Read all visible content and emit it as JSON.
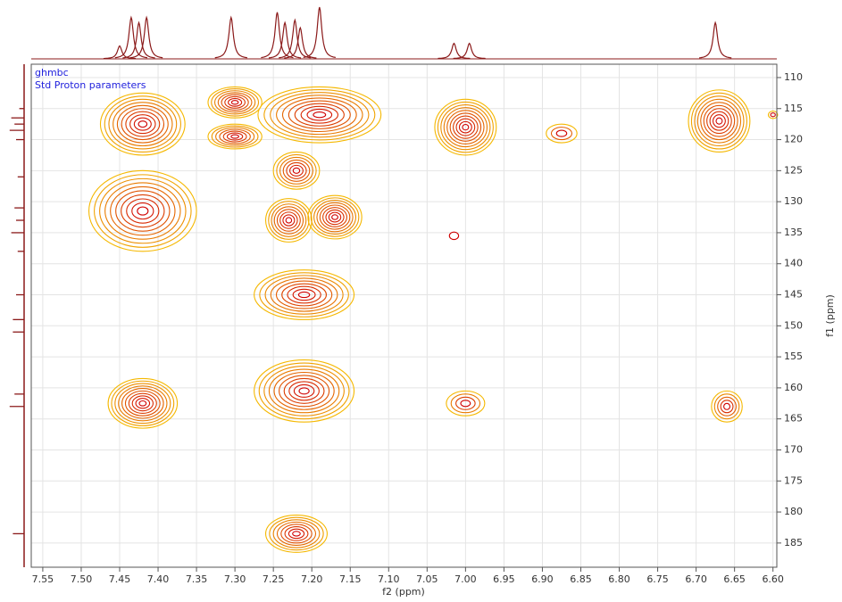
{
  "chart_data": {
    "type": "contour",
    "title": "ghmbc",
    "subtitle": "Std Proton parameters",
    "x_label": "f2 (ppm)",
    "y_label": "f1 (ppm)",
    "xlim": [
      7.565,
      6.595
    ],
    "ylim": [
      107.85,
      188.9
    ],
    "xticks": [
      7.55,
      {
        "value": 7.5,
        "label": "7.50"
      },
      7.45,
      {
        "value": 7.4,
        "label": "7.40"
      },
      7.35,
      {
        "value": 7.3,
        "label": "7.30"
      },
      7.25,
      {
        "value": 7.2,
        "label": "7.20"
      },
      7.15,
      {
        "value": 7.1,
        "label": "7.10"
      },
      7.05,
      {
        "value": 7.0,
        "label": "7.00"
      },
      6.95,
      {
        "value": 6.9,
        "label": "6.90"
      },
      6.85,
      {
        "value": 6.8,
        "label": "6.80"
      },
      6.75,
      {
        "value": 6.7,
        "label": "6.70"
      },
      6.65,
      {
        "value": 6.6,
        "label": "6.60"
      }
    ],
    "yticks": [
      110,
      115,
      120,
      125,
      130,
      135,
      140,
      145,
      150,
      155,
      160,
      165,
      170,
      175,
      180,
      185
    ],
    "grid": true,
    "outer_color": "#f5b800",
    "inner_color": "#d00000",
    "projection_color": "#8b1a1a",
    "peaks": {
      "x": [
        7.42,
        7.3,
        7.3,
        7.19,
        7.22,
        7.42,
        7.23,
        7.17,
        7.21,
        7.42,
        7.21,
        7.0,
        6.875,
        6.67,
        7.0,
        6.66,
        7.22,
        7.015,
        6.6
      ],
      "y": [
        117.5,
        114,
        119.5,
        116,
        125,
        131.5,
        133,
        132.5,
        145,
        162.5,
        160.5,
        118,
        119,
        117,
        162.5,
        163,
        183.5,
        135.5,
        116
      ],
      "width": [
        0.11,
        0.07,
        0.07,
        0.16,
        0.06,
        0.14,
        0.06,
        0.07,
        0.13,
        0.09,
        0.13,
        0.08,
        0.04,
        0.08,
        0.05,
        0.04,
        0.08,
        0.012,
        0.012
      ],
      "height": [
        10,
        5,
        4,
        9,
        6,
        13,
        7,
        7,
        8,
        8,
        10,
        9,
        3,
        10,
        4,
        5,
        6,
        1.2,
        1.2
      ],
      "levels": [
        10,
        8,
        7,
        10,
        7,
        10,
        8,
        9,
        9,
        10,
        10,
        10,
        3,
        10,
        4,
        5,
        8,
        1,
        2
      ]
    },
    "f2_projection": {
      "x": [
        7.45,
        7.435,
        7.425,
        7.415,
        7.305,
        7.245,
        7.235,
        7.222,
        7.215,
        7.19,
        7.015,
        6.995,
        6.675
      ],
      "intensity": [
        0.25,
        0.8,
        0.7,
        0.8,
        0.8,
        0.9,
        0.7,
        0.75,
        0.6,
        1.0,
        0.3,
        0.3,
        0.7
      ]
    },
    "f1_projection": {
      "y": [
        115,
        116.5,
        117.5,
        118.5,
        120,
        126,
        131,
        133,
        135,
        138,
        145,
        149,
        151,
        161,
        163,
        183.5
      ],
      "intensity": [
        0.3,
        0.8,
        0.6,
        0.9,
        0.5,
        0.4,
        0.6,
        0.5,
        0.8,
        0.4,
        0.5,
        0.7,
        0.7,
        0.6,
        0.9,
        0.7
      ]
    }
  }
}
